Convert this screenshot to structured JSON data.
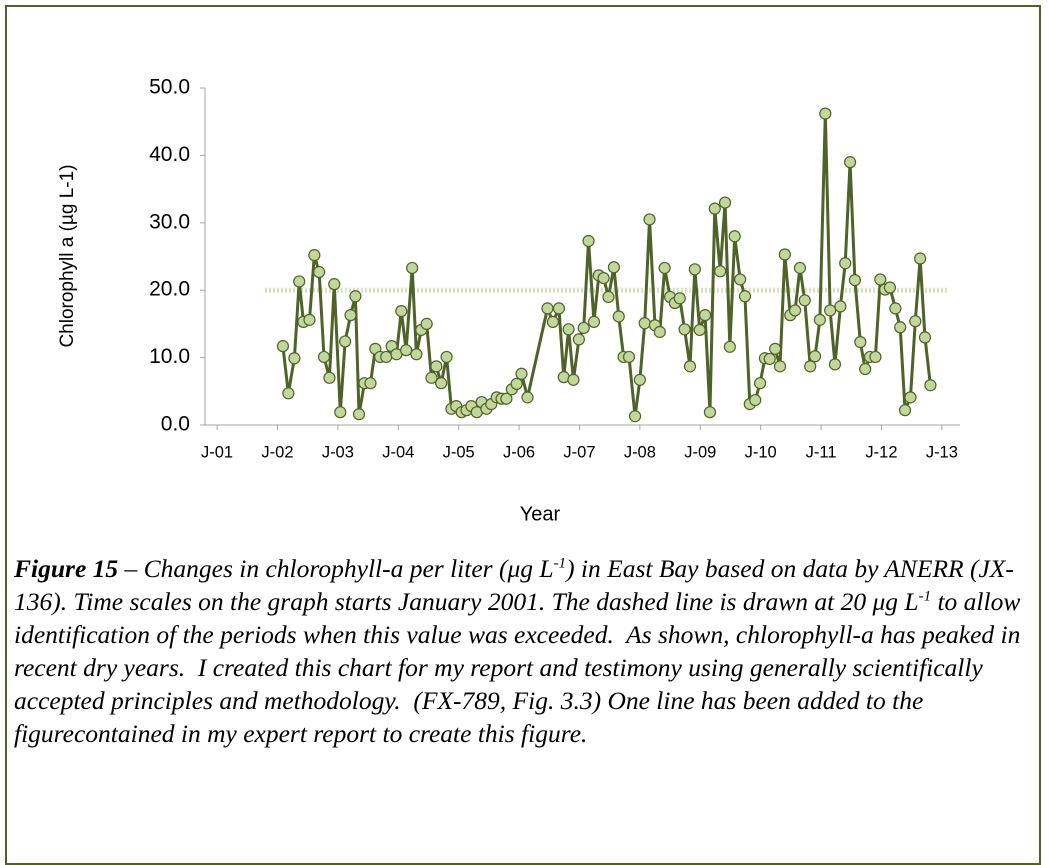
{
  "chart_data": {
    "type": "line",
    "y_label": "Chlorophyll a (µg L-1)",
    "x_label": "Year",
    "xlim": [
      2000.8,
      2013.3
    ],
    "xticks": [
      {
        "value": 2001,
        "label": "J-01"
      },
      {
        "value": 2002,
        "label": "J-02"
      },
      {
        "value": 2003,
        "label": "J-03"
      },
      {
        "value": 2004,
        "label": "J-04"
      },
      {
        "value": 2005,
        "label": "J-05"
      },
      {
        "value": 2006,
        "label": "J-06"
      },
      {
        "value": 2007,
        "label": "J-07"
      },
      {
        "value": 2008,
        "label": "J-08"
      },
      {
        "value": 2009,
        "label": "J-09"
      },
      {
        "value": 2010,
        "label": "J-10"
      },
      {
        "value": 2011,
        "label": "J-11"
      },
      {
        "value": 2012,
        "label": "J-12"
      },
      {
        "value": 2013,
        "label": "J-13"
      }
    ],
    "ylim": [
      0,
      50
    ],
    "yticks": [
      {
        "value": 0,
        "label": "0.0"
      },
      {
        "value": 10,
        "label": "10.0"
      },
      {
        "value": 20,
        "label": "20.0"
      },
      {
        "value": 30,
        "label": "30.0"
      },
      {
        "value": 40,
        "label": "40.0"
      },
      {
        "value": 50,
        "label": "50.0"
      }
    ],
    "reference_line": 20,
    "reference_color": "#d7e4bd",
    "color": "#4f6228",
    "marker_color": "#c3d69b",
    "x": [
      2002.09,
      2002.18,
      2002.28,
      2002.36,
      2002.43,
      2002.53,
      2002.61,
      2002.69,
      2002.77,
      2002.86,
      2002.94,
      2003.04,
      2003.12,
      2003.21,
      2003.29,
      2003.35,
      2003.44,
      2003.54,
      2003.62,
      2003.7,
      2003.8,
      2003.89,
      2003.97,
      2004.05,
      2004.13,
      2004.23,
      2004.3,
      2004.38,
      2004.47,
      2004.55,
      2004.63,
      2004.71,
      2004.8,
      2004.88,
      2004.96,
      2005.05,
      2005.13,
      2005.21,
      2005.3,
      2005.38,
      2005.46,
      2005.54,
      2005.63,
      2005.71,
      2005.79,
      2005.88,
      2005.96,
      2006.04,
      2006.14,
      2006.47,
      2006.56,
      2006.66,
      2006.74,
      2006.82,
      2006.9,
      2006.99,
      2007.07,
      2007.15,
      2007.24,
      2007.32,
      2007.4,
      2007.48,
      2007.57,
      2007.65,
      2007.73,
      2007.82,
      2007.92,
      2008.0,
      2008.08,
      2008.16,
      2008.25,
      2008.33,
      2008.41,
      2008.5,
      2008.58,
      2008.66,
      2008.74,
      2008.83,
      2008.91,
      2008.99,
      2009.08,
      2009.16,
      2009.24,
      2009.33,
      2009.41,
      2009.49,
      2009.57,
      2009.66,
      2009.74,
      2009.82,
      2009.91,
      2009.99,
      2010.07,
      2010.15,
      2010.24,
      2010.32,
      2010.4,
      2010.49,
      2010.57,
      2010.65,
      2010.73,
      2010.82,
      2010.9,
      2010.98,
      2011.07,
      2011.15,
      2011.23,
      2011.32,
      2011.4,
      2011.48,
      2011.56,
      2011.65,
      2011.73,
      2011.81,
      2011.9,
      2011.98,
      2012.06,
      2012.14,
      2012.23,
      2012.31,
      2012.39,
      2012.48,
      2012.56,
      2012.64,
      2012.72,
      2012.81
    ],
    "values": [
      11.7,
      4.7,
      9.9,
      21.3,
      15.3,
      15.6,
      25.2,
      22.7,
      10.1,
      7.0,
      20.9,
      1.9,
      12.4,
      16.3,
      19.1,
      1.6,
      6.2,
      6.2,
      11.3,
      10.1,
      10.1,
      11.7,
      10.5,
      16.9,
      11.1,
      23.3,
      10.5,
      14.1,
      15.0,
      7.0,
      8.7,
      6.2,
      10.1,
      2.4,
      2.8,
      1.9,
      2.2,
      2.8,
      1.9,
      3.4,
      2.4,
      3.1,
      4.1,
      3.9,
      3.9,
      5.3,
      6.1,
      7.6,
      4.1,
      17.3,
      15.3,
      17.3,
      7.1,
      14.2,
      6.7,
      12.7,
      14.4,
      27.3,
      15.3,
      22.2,
      21.8,
      19.0,
      23.4,
      16.1,
      10.1,
      10.1,
      1.3,
      6.7,
      15.1,
      30.5,
      14.8,
      13.8,
      23.3,
      19.0,
      18.1,
      18.8,
      14.2,
      8.7,
      23.1,
      14.1,
      16.3,
      1.9,
      32.1,
      22.8,
      33.0,
      11.6,
      28.0,
      21.6,
      19.1,
      3.1,
      3.7,
      6.2,
      9.9,
      9.8,
      11.3,
      8.7,
      25.3,
      16.3,
      17.0,
      23.3,
      18.5,
      8.7,
      10.2,
      15.6,
      46.2,
      17.0,
      9.0,
      17.6,
      24.0,
      39.0,
      21.5,
      12.3,
      8.3,
      10.1,
      10.1,
      21.6,
      20.1,
      20.4,
      17.3,
      14.5,
      2.2,
      4.1,
      15.4,
      24.7,
      13.0,
      5.9
    ]
  },
  "caption": {
    "label": "Figure 15",
    "text": [
      " – Changes in chlorophyll-a per liter (μg L",
      "-1",
      ") in East Bay based on data by ANERR (JX-136). Time scales on the graph starts January 2001. The dashed line is drawn at 20 μg L",
      "-1",
      " to allow identification of the periods when this value was exceeded.  As shown, chlorophyll-a has peaked in recent dry years.  I created this chart for my report and testimony using generally scientifically accepted principles and methodology.  (FX-789, Fig. 3.3) One line has been added to the figurecontained in my expert report to create this figure."
    ]
  }
}
